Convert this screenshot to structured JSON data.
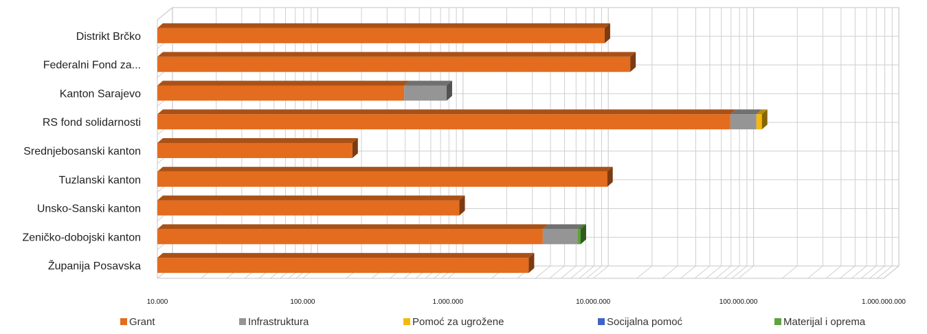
{
  "chart_data": {
    "type": "bar",
    "orientation": "horizontal",
    "stacked": true,
    "style": "3d",
    "x_scale": "log",
    "xlim": [
      10000,
      1000000000
    ],
    "grid": true,
    "legend_position": "bottom",
    "title": "",
    "xlabel": "",
    "ylabel": "",
    "categories": [
      "Distrikt Brčko",
      "Federalni Fond za...",
      "Kanton Sarajevo",
      "RS fond solidarnosti",
      "Srednjebosanski kanton",
      "Tuzlanski kanton",
      "Unsko-Sanski kanton",
      "Zeničko-dobojski kanton",
      "Županija Posavska"
    ],
    "x_tick_labels": [
      "10.000",
      "100.000",
      "1.000.000",
      "10.000.000",
      "100.000.000",
      "1.000.000.000"
    ],
    "x_tick_values": [
      10000,
      100000,
      1000000,
      10000000,
      100000000,
      1000000000
    ],
    "series": [
      {
        "name": "Grant",
        "color": "#E36C1E",
        "values": [
          12000000,
          18000000,
          500000,
          88000000,
          220000,
          12500000,
          1200000,
          4500000,
          3600000
        ]
      },
      {
        "name": "Infrastruktura",
        "color": "#959595",
        "values": [
          0,
          0,
          480000,
          45000000,
          0,
          0,
          0,
          3300000,
          0
        ]
      },
      {
        "name": "Pomoć za ugrožene",
        "color": "#F6B90B",
        "values": [
          0,
          0,
          0,
          12000000,
          0,
          0,
          0,
          0,
          0
        ]
      },
      {
        "name": "Socijalna pomoć",
        "color": "#3F63C8",
        "values": [
          0,
          0,
          0,
          0,
          0,
          0,
          0,
          0,
          0
        ]
      },
      {
        "name": "Materijal i oprema",
        "color": "#5CA43B",
        "values": [
          0,
          0,
          0,
          0,
          0,
          0,
          0,
          400000,
          0
        ]
      }
    ]
  }
}
